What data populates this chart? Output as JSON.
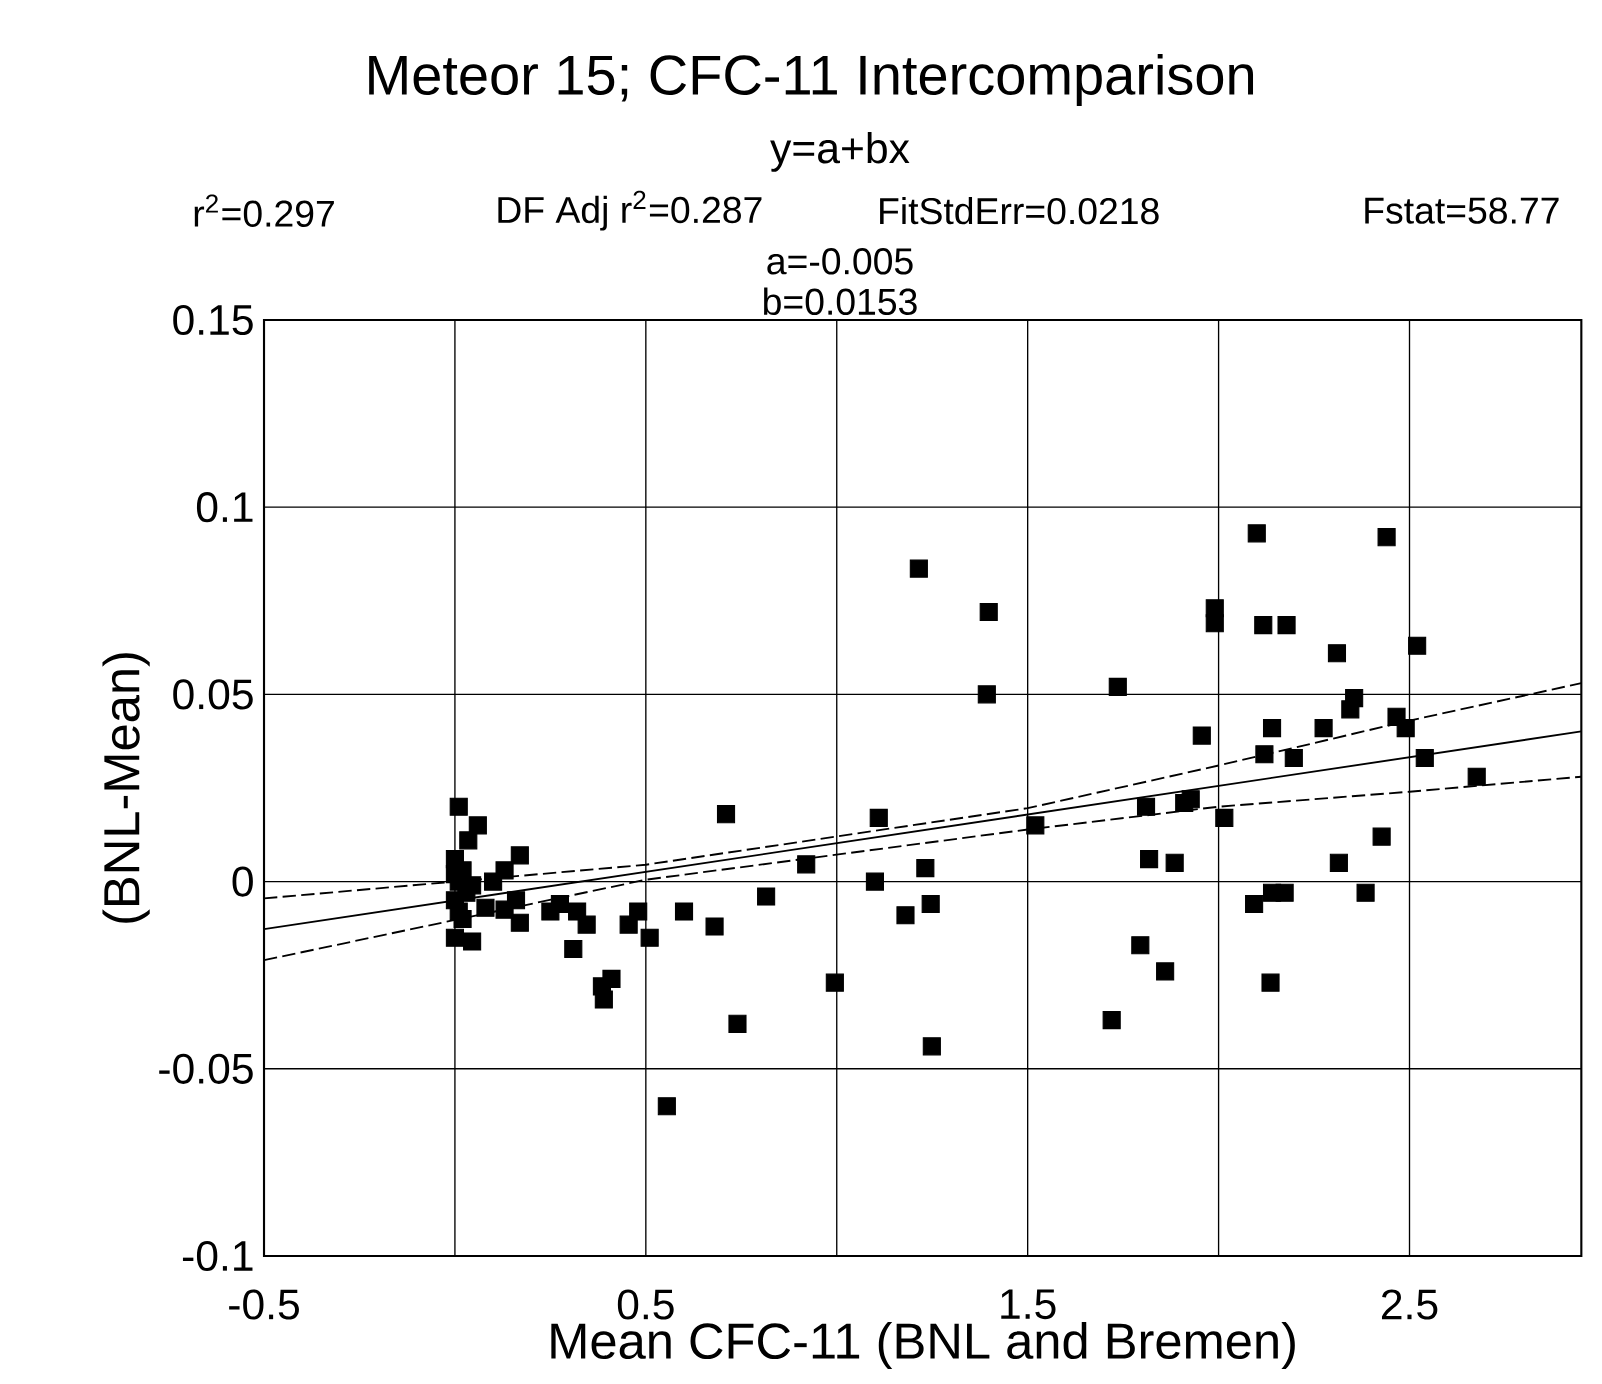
{
  "chart_data": {
    "type": "scatter",
    "title": "Meteor 15; CFC-11 Intercomparison",
    "subtitle": "y=a+bx",
    "annotations": [
      "r$^{2}$=0.297",
      "DF Adj r$^{2}$=0.287",
      "FitStdErr=0.0218",
      "Fstat=58.77",
      "a=-0.005",
      "b=0.0153"
    ],
    "xlabel": "Mean CFC-11 (BNL and Bremen)",
    "ylabel": "(BNL-Mean)",
    "xlim": [
      -0.5,
      2.95
    ],
    "ylim": [
      -0.1,
      0.15
    ],
    "xticks": [
      -0.5,
      {
        "value": 0,
        "label": null
      },
      0.5,
      {
        "value": 1,
        "label": null
      },
      1.5,
      {
        "value": 2,
        "label": null
      },
      2.5
    ],
    "yticks": [
      -0.1,
      -0.05,
      0,
      0.05,
      0.1,
      0.15
    ],
    "grid": true,
    "series": [
      {
        "color": "#000000",
        "marker": "square",
        "x": [
          0.01,
          0.06,
          0.035,
          0.0,
          0.01,
          0.0,
          0.01,
          0.045,
          0.0,
          0.045,
          0.08,
          0.1,
          0.13,
          0.17,
          0.13,
          0.16,
          0.17,
          0.25,
          0.275,
          0.32,
          0.345,
          0.31,
          0.385,
          0.39,
          0.41,
          0.455,
          0.48,
          0.51,
          0.6,
          0.68,
          0.71,
          0.74,
          0.815,
          0.555,
          0.92,
          0.995,
          1.1,
          1.11,
          1.18,
          0.02,
          0.03,
          0.0,
          0.02,
          1.215,
          1.398,
          1.393,
          1.232,
          1.246,
          1.249,
          1.52,
          1.736,
          1.81,
          1.818,
          1.885,
          1.91,
          1.927,
          1.956,
          1.795,
          1.86,
          1.72,
          1.99,
          1.99,
          2.015,
          2.1,
          2.117,
          2.178,
          2.12,
          2.14,
          2.197,
          2.093,
          2.14,
          2.173,
          2.136,
          2.275,
          2.31,
          2.345,
          2.355,
          2.315,
          2.385,
          2.427,
          2.44,
          2.466,
          2.49,
          2.52,
          2.54,
          2.676
        ],
        "values": [
          0.02,
          0.015,
          0.011,
          0.006,
          0.0,
          -0.005,
          -0.008,
          -0.001,
          -0.015,
          -0.016,
          -0.007,
          0.0,
          0.003,
          0.007,
          -0.0075,
          -0.005,
          -0.011,
          -0.008,
          -0.006,
          -0.008,
          -0.0115,
          -0.018,
          -0.028,
          -0.0315,
          -0.026,
          -0.0115,
          -0.008,
          -0.015,
          -0.008,
          -0.012,
          0.018,
          -0.038,
          -0.004,
          -0.06,
          0.0046,
          -0.027,
          0.0,
          0.017,
          -0.009,
          0.003,
          -0.003,
          0.002,
          -0.01,
          0.0836,
          0.072,
          0.05,
          0.0036,
          -0.006,
          -0.044,
          0.015,
          0.052,
          0.02,
          0.006,
          0.005,
          0.021,
          0.022,
          0.039,
          -0.017,
          -0.024,
          -0.037,
          0.073,
          0.069,
          0.017,
          0.093,
          0.0685,
          0.0685,
          0.034,
          0.041,
          0.033,
          -0.006,
          -0.003,
          -0.003,
          -0.027,
          0.041,
          0.061,
          0.046,
          0.049,
          0.005,
          -0.003,
          0.012,
          0.092,
          0.044,
          0.041,
          0.063,
          0.033,
          0.028
        ]
      },
      {
        "type": "line",
        "color": "#000000",
        "marker": "none",
        "line_style": "solid",
        "x": [
          -0.5,
          2.95
        ],
        "values": [
          -0.0127,
          0.0401
        ]
      },
      {
        "type": "line",
        "color": "#000000",
        "marker": "none",
        "line_style": "dashed",
        "x": [
          -0.5,
          0.5,
          1.5,
          2.0,
          2.5,
          2.95
        ],
        "values": [
          -0.0045,
          0.0045,
          0.0196,
          0.031,
          0.043,
          0.053
        ]
      },
      {
        "type": "line",
        "color": "#000000",
        "marker": "none",
        "line_style": "dashed",
        "x": [
          -0.5,
          0.5,
          1.5,
          2.0,
          2.5,
          2.95
        ],
        "values": [
          -0.021,
          0.0005,
          0.0139,
          0.02,
          0.024,
          0.028
        ]
      }
    ]
  }
}
